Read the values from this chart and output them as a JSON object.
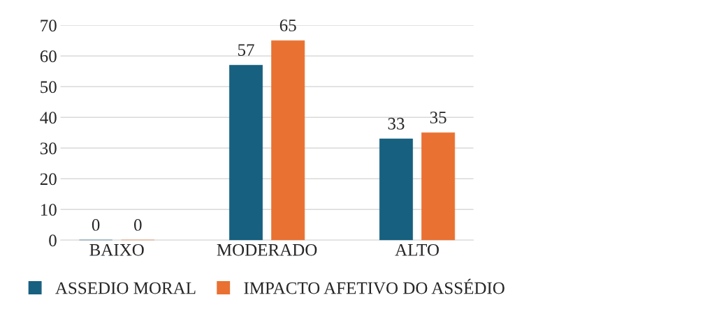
{
  "chart_data": {
    "type": "bar",
    "categories": [
      "BAIXO",
      "MODERADO",
      "ALTO"
    ],
    "series": [
      {
        "name": "ASSEDIO MORAL",
        "color": "#17607f",
        "values": [
          0,
          57,
          33
        ]
      },
      {
        "name": "IMPACTO AFETIVO DO ASSÉDIO",
        "color": "#e97132",
        "values": [
          0,
          65,
          35
        ]
      }
    ],
    "ylim": [
      0,
      70
    ],
    "yticks": [
      0,
      10,
      20,
      30,
      40,
      50,
      60,
      70
    ],
    "grid": "y",
    "legend": "bottom",
    "data_labels": true
  }
}
